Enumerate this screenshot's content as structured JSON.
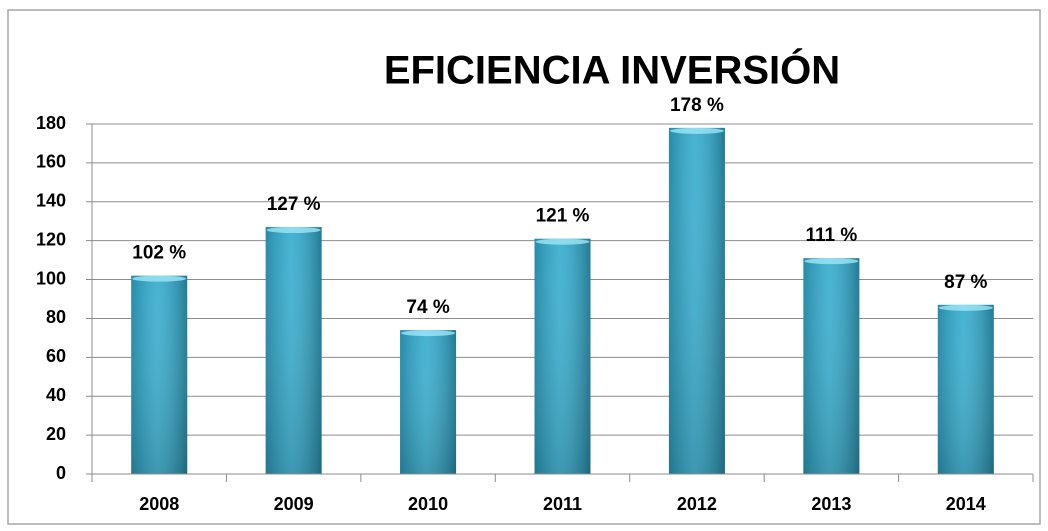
{
  "chart_data": {
    "type": "bar",
    "title": "EFICIENCIA INVERSIÓN",
    "categories": [
      "2008",
      "2009",
      "2010",
      "2011",
      "2012",
      "2013",
      "2014"
    ],
    "values": [
      102,
      127,
      74,
      121,
      178,
      111,
      87
    ],
    "value_labels": [
      "102 %",
      "127 %",
      "74 %",
      "121 %",
      "178 %",
      "111 %",
      "87 %"
    ],
    "color": "#2ea9cc",
    "ylim": [
      0,
      180
    ],
    "yticks": [
      0,
      20,
      40,
      60,
      80,
      100,
      120,
      140,
      160,
      180
    ],
    "grid": true
  }
}
